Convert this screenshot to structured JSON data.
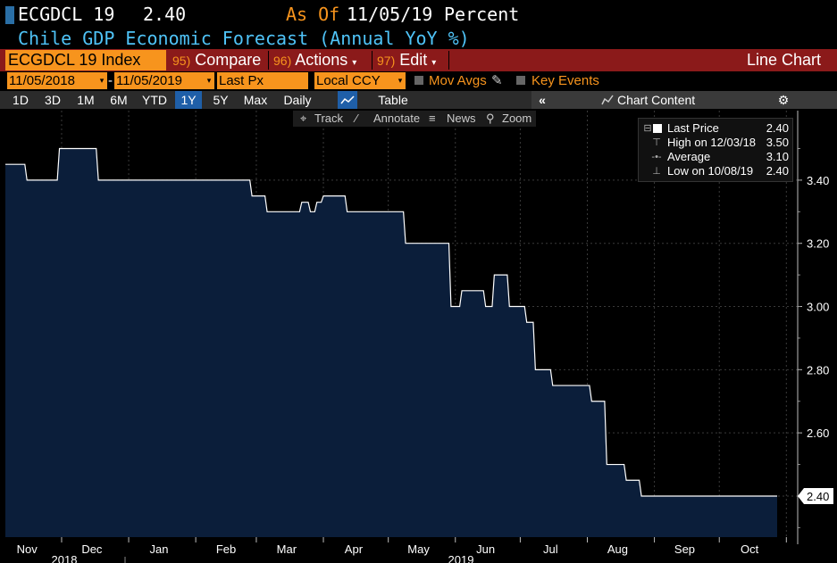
{
  "header": {
    "ticker": "ECGDCL 19",
    "last_value": "2.40",
    "asof_label": "As Of",
    "asof_date": "11/05/19",
    "unit": "Percent",
    "subtitle": "Chile GDP Economic Forecast (Annual YoY %)"
  },
  "toolbar": {
    "security": "ECGDCL 19 Index",
    "compare_num": "95)",
    "compare_label": "Compare",
    "actions_num": "96)",
    "actions_label": "Actions",
    "edit_num": "97)",
    "edit_label": "Edit",
    "chart_type": "Line Chart",
    "start_date": "11/05/2018",
    "date_sep": "-",
    "end_date": "11/05/2019",
    "field": "Last Px",
    "currency": "Local CCY",
    "mov_avgs": "Mov Avgs",
    "key_events": "Key Events"
  },
  "ranges": {
    "items": [
      "1D",
      "3D",
      "1M",
      "6M",
      "YTD",
      "1Y",
      "5Y",
      "Max"
    ],
    "active": "1Y",
    "period": "Daily",
    "table": "Table",
    "chart_content": "Chart Content"
  },
  "chart_tools": {
    "track": "Track",
    "annotate": "Annotate",
    "news": "News",
    "zoom": "Zoom"
  },
  "legend": {
    "last_label": "Last Price",
    "last_value": "2.40",
    "high_label": "High on 12/03/18",
    "high_value": "3.50",
    "avg_label": "Average",
    "avg_value": "3.10",
    "low_label": "Low on 10/08/19",
    "low_value": "2.40"
  },
  "colors": {
    "area_fill": "#0b1e3a",
    "line": "#ffffff",
    "accent_orange": "#f7941d",
    "title_cyan": "#4fc3f7",
    "menu_red": "#8b1a1a"
  },
  "chart_data": {
    "type": "area",
    "ylim": [
      2.27,
      3.62
    ],
    "yticks": [
      2.4,
      2.6,
      2.8,
      3.0,
      3.2,
      3.4
    ],
    "ytick_labels": [
      "2.40",
      "2.60",
      "2.80",
      "3.00",
      "3.20",
      "3.40"
    ],
    "last_value_label": "2.40",
    "xtick_labels": [
      "Nov",
      "Dec",
      "Jan",
      "Feb",
      "Mar",
      "Apr",
      "May",
      "Jun",
      "Jul",
      "Aug",
      "Sep",
      "Oct"
    ],
    "year_labels": [
      "2018",
      "2019"
    ],
    "series": [
      {
        "x": [
          "2018-11-05",
          "2018-11-14",
          "2018-11-15",
          "2018-11-29",
          "2018-11-30",
          "2018-12-17",
          "2018-12-18",
          "2019-02-26",
          "2019-02-27",
          "2019-03-05",
          "2019-03-06",
          "2019-03-21",
          "2019-03-22",
          "2019-03-25",
          "2019-03-26",
          "2019-03-28",
          "2019-03-29",
          "2019-03-31",
          "2019-04-01",
          "2019-04-11",
          "2019-04-12",
          "2019-05-08",
          "2019-05-09",
          "2019-05-29",
          "2019-05-30",
          "2019-06-03",
          "2019-06-04",
          "2019-06-14",
          "2019-06-15",
          "2019-06-18",
          "2019-06-19",
          "2019-06-25",
          "2019-06-26",
          "2019-07-03",
          "2019-07-04",
          "2019-07-07",
          "2019-07-08",
          "2019-07-15",
          "2019-07-16",
          "2019-08-02",
          "2019-08-03",
          "2019-08-09",
          "2019-08-10",
          "2019-08-18",
          "2019-08-19",
          "2019-08-25",
          "2019-08-26",
          "2019-09-11",
          "2019-09-12",
          "2019-09-21",
          "2019-09-22",
          "2019-10-21"
        ],
        "values": [
          3.45,
          3.45,
          3.4,
          3.4,
          3.5,
          3.5,
          3.4,
          3.4,
          3.35,
          3.35,
          3.3,
          3.3,
          3.33,
          3.33,
          3.3,
          3.3,
          3.33,
          3.33,
          3.35,
          3.35,
          3.3,
          3.3,
          3.2,
          3.2,
          3.0,
          3.0,
          3.05,
          3.05,
          3.0,
          3.0,
          3.1,
          3.1,
          3.0,
          3.0,
          2.95,
          2.95,
          2.8,
          2.8,
          2.75,
          2.75,
          2.7,
          2.7,
          2.5,
          2.5,
          2.45,
          2.45,
          2.4,
          2.4,
          2.4,
          2.4,
          2.4,
          2.4
        ]
      }
    ]
  }
}
